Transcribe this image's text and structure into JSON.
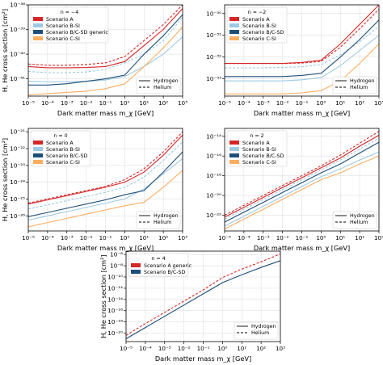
{
  "colors": {
    "scenario_a": "#d62728",
    "scenario_b_si": "#9ecae1",
    "scenario_bc_sd": "#1f4e79",
    "scenario_c_si": "#fdae61",
    "grid": "#d9d9d9",
    "axis": "#000000"
  },
  "line_styles": {
    "hydrogen": "solid",
    "helium": "dashed"
  },
  "chart_data": [
    {
      "type": "line",
      "title": "",
      "xlabel": "Dark matter mass m_χ [GeV]",
      "ylabel": "H, He cross section [cm²]",
      "x_scale": "log",
      "y_scale": "log",
      "xlim": [
        1e-05,
        1000
      ],
      "ylim_exponent": [
        -41.7,
        -38
      ],
      "grid": true,
      "x_ticks": [
        "10⁻⁵",
        "10⁻⁴",
        "10⁻³",
        "10⁻²",
        "10⁻¹",
        "10⁰",
        "10¹",
        "10²",
        "10³"
      ],
      "y_ticks": [
        {
          "exp": -41,
          "label": "10⁻⁴¹"
        },
        {
          "exp": -40,
          "label": "10⁻⁴⁰"
        },
        {
          "exp": -39,
          "label": "10⁻³⁹"
        },
        {
          "exp": -38,
          "label": "10⁻³⁸"
        }
      ],
      "legend_scenarios": {
        "title": "n = −4",
        "placement": "upper left",
        "entries": [
          "Scenario A",
          "Scenario B-SI",
          "Scenario B/C-SD generic",
          "Scenario C-SI"
        ]
      },
      "legend_nuclei": {
        "placement": "lower right",
        "entries": [
          "Hydrogen",
          "Helium"
        ]
      },
      "x_exponents": [
        -5,
        -4,
        -3,
        -2,
        -1,
        0,
        1,
        2,
        3
      ],
      "series": [
        {
          "scenario": "scenario_a",
          "nucleus": "hydrogen",
          "y_exponents": [
            -40.5,
            -40.55,
            -40.55,
            -40.54,
            -40.5,
            -40.3,
            -39.65,
            -39.0,
            -38.15
          ]
        },
        {
          "scenario": "scenario_a",
          "nucleus": "helium",
          "y_exponents": [
            -40.4,
            -40.45,
            -40.45,
            -40.42,
            -40.35,
            -40.1,
            -39.45,
            -38.8,
            -38.0
          ]
        },
        {
          "scenario": "scenario_b_si",
          "nucleus": "hydrogen",
          "y_exponents": [
            -41.1,
            -41.12,
            -41.12,
            -41.1,
            -41.05,
            -40.9,
            -40.5,
            -40.0,
            -39.3
          ]
        },
        {
          "scenario": "scenario_b_si",
          "nucleus": "helium",
          "y_exponents": [
            -40.7,
            -40.75,
            -40.75,
            -40.72,
            -40.62,
            -40.35,
            -40.0,
            -39.45,
            -38.5
          ]
        },
        {
          "scenario": "scenario_bc_sd",
          "nucleus": "hydrogen",
          "y_exponents": [
            -41.25,
            -41.25,
            -41.2,
            -41.1,
            -41.0,
            -40.85,
            -40.0,
            -39.25,
            -38.4
          ]
        },
        {
          "scenario": "scenario_c_si",
          "nucleus": "hydrogen",
          "y_exponents": [
            -41.65,
            -41.6,
            -41.55,
            -41.5,
            -41.4,
            -41.2,
            -40.5,
            -39.75,
            -38.9
          ]
        }
      ]
    },
    {
      "type": "line",
      "title": "",
      "xlabel": "Dark matter mass m_χ [GeV]",
      "ylabel": "",
      "x_scale": "log",
      "y_scale": "log",
      "xlim": [
        1e-05,
        1000
      ],
      "ylim_exponent": [
        -33.8,
        -29.6
      ],
      "grid": true,
      "x_ticks": [
        "10⁻⁵",
        "10⁻⁴",
        "10⁻³",
        "10⁻²",
        "10⁻¹",
        "10⁰",
        "10¹",
        "10²",
        "10³"
      ],
      "y_ticks": [
        {
          "exp": -33,
          "label": "10⁻³³"
        },
        {
          "exp": -32,
          "label": "10⁻³²"
        },
        {
          "exp": -31,
          "label": "10⁻³¹"
        },
        {
          "exp": -30,
          "label": "10⁻³⁰"
        }
      ],
      "legend_scenarios": {
        "title": "n = −2",
        "placement": "upper left",
        "entries": [
          "Scenario A",
          "Scenario B-SI",
          "Scenario B/C-SD",
          "Scenario C-SI"
        ]
      },
      "legend_nuclei": {
        "placement": "lower right",
        "entries": [
          "Hydrogen",
          "Helium"
        ]
      },
      "x_exponents": [
        -5,
        -4,
        -3,
        -2,
        -1,
        0,
        1,
        2,
        3
      ],
      "series": [
        {
          "scenario": "scenario_a",
          "nucleus": "hydrogen",
          "y_exponents": [
            -32.3,
            -32.3,
            -32.3,
            -32.3,
            -32.25,
            -32.15,
            -31.4,
            -30.5,
            -29.6
          ]
        },
        {
          "scenario": "scenario_a",
          "nucleus": "helium",
          "y_exponents": [
            -32.3,
            -32.3,
            -32.3,
            -32.3,
            -32.28,
            -32.2,
            -31.55,
            -30.7,
            -29.8
          ]
        },
        {
          "scenario": "scenario_b_si",
          "nucleus": "hydrogen",
          "y_exponents": [
            -33.1,
            -33.1,
            -33.1,
            -33.1,
            -33.05,
            -32.95,
            -32.4,
            -31.7,
            -31.0
          ]
        },
        {
          "scenario": "scenario_b_si",
          "nucleus": "helium",
          "y_exponents": [
            -32.5,
            -32.5,
            -32.5,
            -32.48,
            -32.45,
            -32.35,
            -31.9,
            -31.3,
            -30.6
          ]
        },
        {
          "scenario": "scenario_bc_sd",
          "nucleus": "hydrogen",
          "y_exponents": [
            -32.9,
            -32.9,
            -32.9,
            -32.9,
            -32.85,
            -32.75,
            -32.0,
            -31.2,
            -30.3
          ]
        },
        {
          "scenario": "scenario_c_si",
          "nucleus": "hydrogen",
          "y_exponents": [
            -33.7,
            -33.7,
            -33.7,
            -33.7,
            -33.65,
            -33.55,
            -33.1,
            -32.3,
            -31.4
          ]
        }
      ]
    },
    {
      "type": "line",
      "title": "",
      "xlabel": "Dark matter mass m_χ [GeV]",
      "ylabel": "H, He cross section [cm²]",
      "x_scale": "log",
      "y_scale": "log",
      "xlim": [
        1e-05,
        1000
      ],
      "ylim_exponent": [
        -26.9,
        -20.8
      ],
      "grid": true,
      "x_ticks": [
        "10⁻⁵",
        "10⁻⁴",
        "10⁻³",
        "10⁻²",
        "10⁻¹",
        "10⁰",
        "10¹",
        "10²",
        "10³"
      ],
      "y_ticks": [
        {
          "exp": -26,
          "label": "10⁻²⁶"
        },
        {
          "exp": -25,
          "label": "10⁻²⁵"
        },
        {
          "exp": -24,
          "label": "10⁻²⁴"
        },
        {
          "exp": -23,
          "label": "10⁻²³"
        },
        {
          "exp": -22,
          "label": "10⁻²²"
        },
        {
          "exp": -21,
          "label": "10⁻²¹"
        }
      ],
      "legend_scenarios": {
        "title": "n = 0",
        "placement": "upper left",
        "entries": [
          "Scenario A",
          "Scenario B-SI",
          "Scenario B/C-SD",
          "Scenario C-SI"
        ]
      },
      "legend_nuclei": {
        "placement": "lower right",
        "entries": [
          "Hydrogen",
          "Helium"
        ]
      },
      "x_exponents": [
        -5,
        -4,
        -3,
        -2,
        -1,
        0,
        1,
        2,
        3
      ],
      "series": [
        {
          "scenario": "scenario_a",
          "nucleus": "hydrogen",
          "y_exponents": [
            -25.3,
            -25.05,
            -24.8,
            -24.55,
            -24.3,
            -24.0,
            -23.4,
            -22.4,
            -21.2
          ]
        },
        {
          "scenario": "scenario_a",
          "nucleus": "helium",
          "y_exponents": [
            -25.25,
            -25.0,
            -24.75,
            -24.5,
            -24.25,
            -23.85,
            -23.2,
            -22.2,
            -21.0
          ]
        },
        {
          "scenario": "scenario_b_si",
          "nucleus": "hydrogen",
          "y_exponents": [
            -26.25,
            -26.0,
            -25.75,
            -25.5,
            -25.25,
            -25.0,
            -24.4,
            -23.5,
            -22.6
          ]
        },
        {
          "scenario": "scenario_b_si",
          "nucleus": "helium",
          "y_exponents": [
            -25.6,
            -25.35,
            -25.1,
            -24.85,
            -24.6,
            -24.3,
            -23.7,
            -22.7,
            -21.6
          ]
        },
        {
          "scenario": "scenario_bc_sd",
          "nucleus": "hydrogen",
          "y_exponents": [
            -26.05,
            -25.8,
            -25.55,
            -25.3,
            -25.05,
            -24.75,
            -24.5,
            -23.4,
            -22.2
          ]
        },
        {
          "scenario": "scenario_c_si",
          "nucleus": "hydrogen",
          "y_exponents": [
            -26.65,
            -26.4,
            -26.15,
            -25.9,
            -25.65,
            -25.4,
            -25.2,
            -24.3,
            -23.3
          ]
        }
      ]
    },
    {
      "type": "line",
      "title": "",
      "xlabel": "Dark matter mass m_χ [GeV]",
      "ylabel": "",
      "x_scale": "log",
      "y_scale": "log",
      "xlim": [
        1e-05,
        1000
      ],
      "ylim_exponent": [
        -23.6,
        -13.2
      ],
      "grid": true,
      "x_ticks": [
        "10⁻⁵",
        "10⁻⁴",
        "10⁻³",
        "10⁻²",
        "10⁻¹",
        "10⁰",
        "10¹",
        "10²",
        "10³"
      ],
      "y_ticks": [
        {
          "exp": -22,
          "label": "10⁻²²"
        },
        {
          "exp": -20,
          "label": "10⁻²⁰"
        },
        {
          "exp": -18,
          "label": "10⁻¹⁸"
        },
        {
          "exp": -16,
          "label": "10⁻¹⁶"
        },
        {
          "exp": -14,
          "label": "10⁻¹⁴"
        }
      ],
      "legend_scenarios": {
        "title": "n = 2",
        "placement": "upper left",
        "entries": [
          "Scenario A",
          "Scenario B-SI",
          "Scenario B/C-SD",
          "Scenario C-SI"
        ]
      },
      "legend_nuclei": {
        "placement": "lower right",
        "entries": [
          "Hydrogen",
          "Helium"
        ]
      },
      "x_exponents": [
        -5,
        -4,
        -3,
        -2,
        -1,
        0,
        1,
        2,
        3
      ],
      "series": [
        {
          "scenario": "scenario_a",
          "nucleus": "hydrogen",
          "y_exponents": [
            -22.2,
            -21.2,
            -20.2,
            -19.2,
            -18.2,
            -17.2,
            -16.2,
            -15.0,
            -13.9
          ]
        },
        {
          "scenario": "scenario_a",
          "nucleus": "helium",
          "y_exponents": [
            -22.0,
            -21.0,
            -20.0,
            -19.0,
            -18.0,
            -17.0,
            -15.9,
            -14.7,
            -13.5
          ]
        },
        {
          "scenario": "scenario_b_si",
          "nucleus": "hydrogen",
          "y_exponents": [
            -23.1,
            -22.1,
            -21.1,
            -20.1,
            -19.1,
            -18.1,
            -17.3,
            -16.4,
            -15.6
          ]
        },
        {
          "scenario": "scenario_b_si",
          "nucleus": "helium",
          "y_exponents": [
            -22.4,
            -21.4,
            -20.4,
            -19.4,
            -18.4,
            -17.4,
            -16.4,
            -15.3,
            -14.2
          ]
        },
        {
          "scenario": "scenario_bc_sd",
          "nucleus": "hydrogen",
          "y_exponents": [
            -22.7,
            -21.7,
            -20.7,
            -19.7,
            -18.7,
            -17.7,
            -16.8,
            -15.7,
            -14.6
          ]
        },
        {
          "scenario": "scenario_c_si",
          "nucleus": "hydrogen",
          "y_exponents": [
            -23.4,
            -22.4,
            -21.4,
            -20.4,
            -19.4,
            -18.4,
            -17.7,
            -16.8,
            -16.0
          ]
        }
      ]
    },
    {
      "type": "line",
      "title": "",
      "xlabel": "Dark matter mass m_χ [GeV]",
      "ylabel": "H, He cross section [cm²]",
      "x_scale": "log",
      "y_scale": "log",
      "xlim": [
        1e-05,
        1000
      ],
      "ylim_exponent": [
        -21.5,
        -5.4
      ],
      "grid": true,
      "x_ticks": [
        "10⁻⁵",
        "10⁻⁴",
        "10⁻³",
        "10⁻²",
        "10⁻¹",
        "10⁰",
        "10¹",
        "10²",
        "10³"
      ],
      "y_ticks": [
        {
          "exp": -20,
          "label": "10⁻²⁰"
        },
        {
          "exp": -18,
          "label": "10⁻¹⁸"
        },
        {
          "exp": -16,
          "label": "10⁻¹⁶"
        },
        {
          "exp": -14,
          "label": "10⁻¹⁴"
        },
        {
          "exp": -12,
          "label": "10⁻¹²"
        },
        {
          "exp": -10,
          "label": "10⁻¹⁰"
        },
        {
          "exp": -8,
          "label": "10⁻⁸"
        },
        {
          "exp": -6,
          "label": "10⁻⁶"
        }
      ],
      "legend_scenarios": {
        "title": "n = 4",
        "placement": "upper left",
        "entries": [
          "Scenario A generic",
          "Scenario B/C-SD"
        ]
      },
      "legend_nuclei": {
        "placement": "lower right",
        "entries": [
          "Hydrogen",
          "Helium"
        ]
      },
      "x_exponents": [
        -5,
        -4,
        -3,
        -2,
        -1,
        0,
        1,
        2,
        3
      ],
      "series": [
        {
          "scenario": "scenario_a",
          "nucleus": "helium",
          "y_exponents": [
            -20.4,
            -18.3,
            -16.3,
            -14.3,
            -12.3,
            -10.1,
            -8.6,
            -7.3,
            -5.9
          ]
        },
        {
          "scenario": "scenario_bc_sd",
          "nucleus": "hydrogen",
          "y_exponents": [
            -21.0,
            -19.0,
            -17.0,
            -15.0,
            -13.0,
            -11.0,
            -9.6,
            -8.3,
            -7.1
          ]
        }
      ]
    }
  ]
}
